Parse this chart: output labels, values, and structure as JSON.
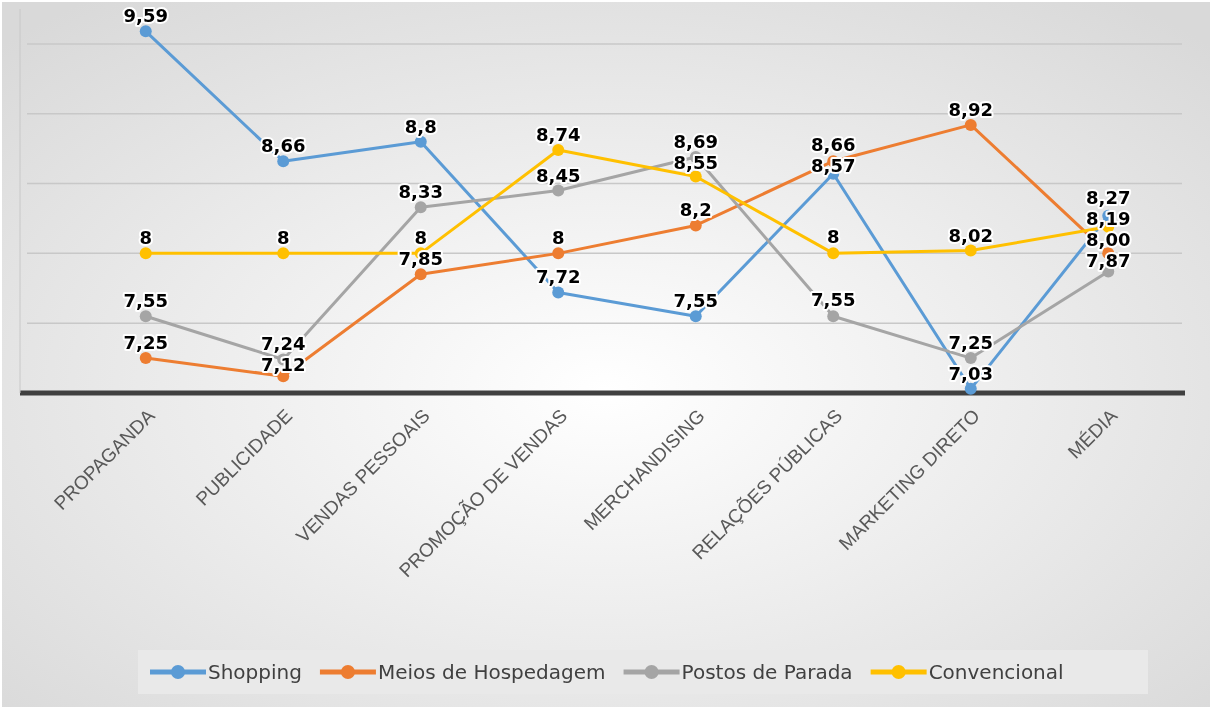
{
  "chart_data": {
    "type": "line",
    "categories": [
      "PROPAGANDA",
      "PUBLICIDADE",
      "VENDAS PESSOAIS",
      "PROMOÇÃO DE VENDAS",
      "MERCHANDISING",
      "RELAÇÕES PÚBLICAS",
      "MARKETING DIRETO",
      "MÉDIA"
    ],
    "series": [
      {
        "name": "Shopping",
        "color": "#5b9bd5",
        "values": [
          9.59,
          8.66,
          8.8,
          7.72,
          7.55,
          8.57,
          7.03,
          8.27
        ],
        "value_labels": [
          "9,59",
          "8,66",
          "8,8",
          "7,72",
          "7,55",
          "8,57",
          "7,03",
          "8,27"
        ]
      },
      {
        "name": "Meios de Hospedagem",
        "color": "#ed7d31",
        "values": [
          7.25,
          7.12,
          7.85,
          8,
          8.2,
          8.66,
          8.92,
          8.0
        ],
        "value_labels": [
          "7,25",
          "7,12",
          "7,85",
          "8",
          "8,2",
          "8,66",
          "8,92",
          "8,00"
        ]
      },
      {
        "name": "Postos de Parada",
        "color": "#a5a5a5",
        "values": [
          7.55,
          7.24,
          8.33,
          8.45,
          8.69,
          7.55,
          7.25,
          7.87
        ],
        "value_labels": [
          "7,55",
          "7,24",
          "8,33",
          "8,45",
          "8,69",
          "7,55",
          "7,25",
          "7,87"
        ]
      },
      {
        "name": "Convencional",
        "color": "#ffc000",
        "values": [
          8,
          8,
          8,
          8.74,
          8.55,
          8,
          8.02,
          8.19
        ],
        "value_labels": [
          "8",
          "8",
          "8",
          "8,74",
          "8,55",
          "8",
          "8,02",
          "8,19"
        ]
      }
    ],
    "ylim": [
      7,
      9.75
    ],
    "yticks": [
      {
        "value": 7,
        "label": null
      },
      {
        "value": 7.5,
        "label": null
      },
      {
        "value": 8,
        "label": null
      },
      {
        "value": 8.5,
        "label": null
      },
      {
        "value": 9,
        "label": null
      },
      {
        "value": 9.5,
        "label": null
      }
    ],
    "tick_labels": "x",
    "grid": "y",
    "legend": "bottom",
    "marker": "circle",
    "line_style": "solid"
  }
}
